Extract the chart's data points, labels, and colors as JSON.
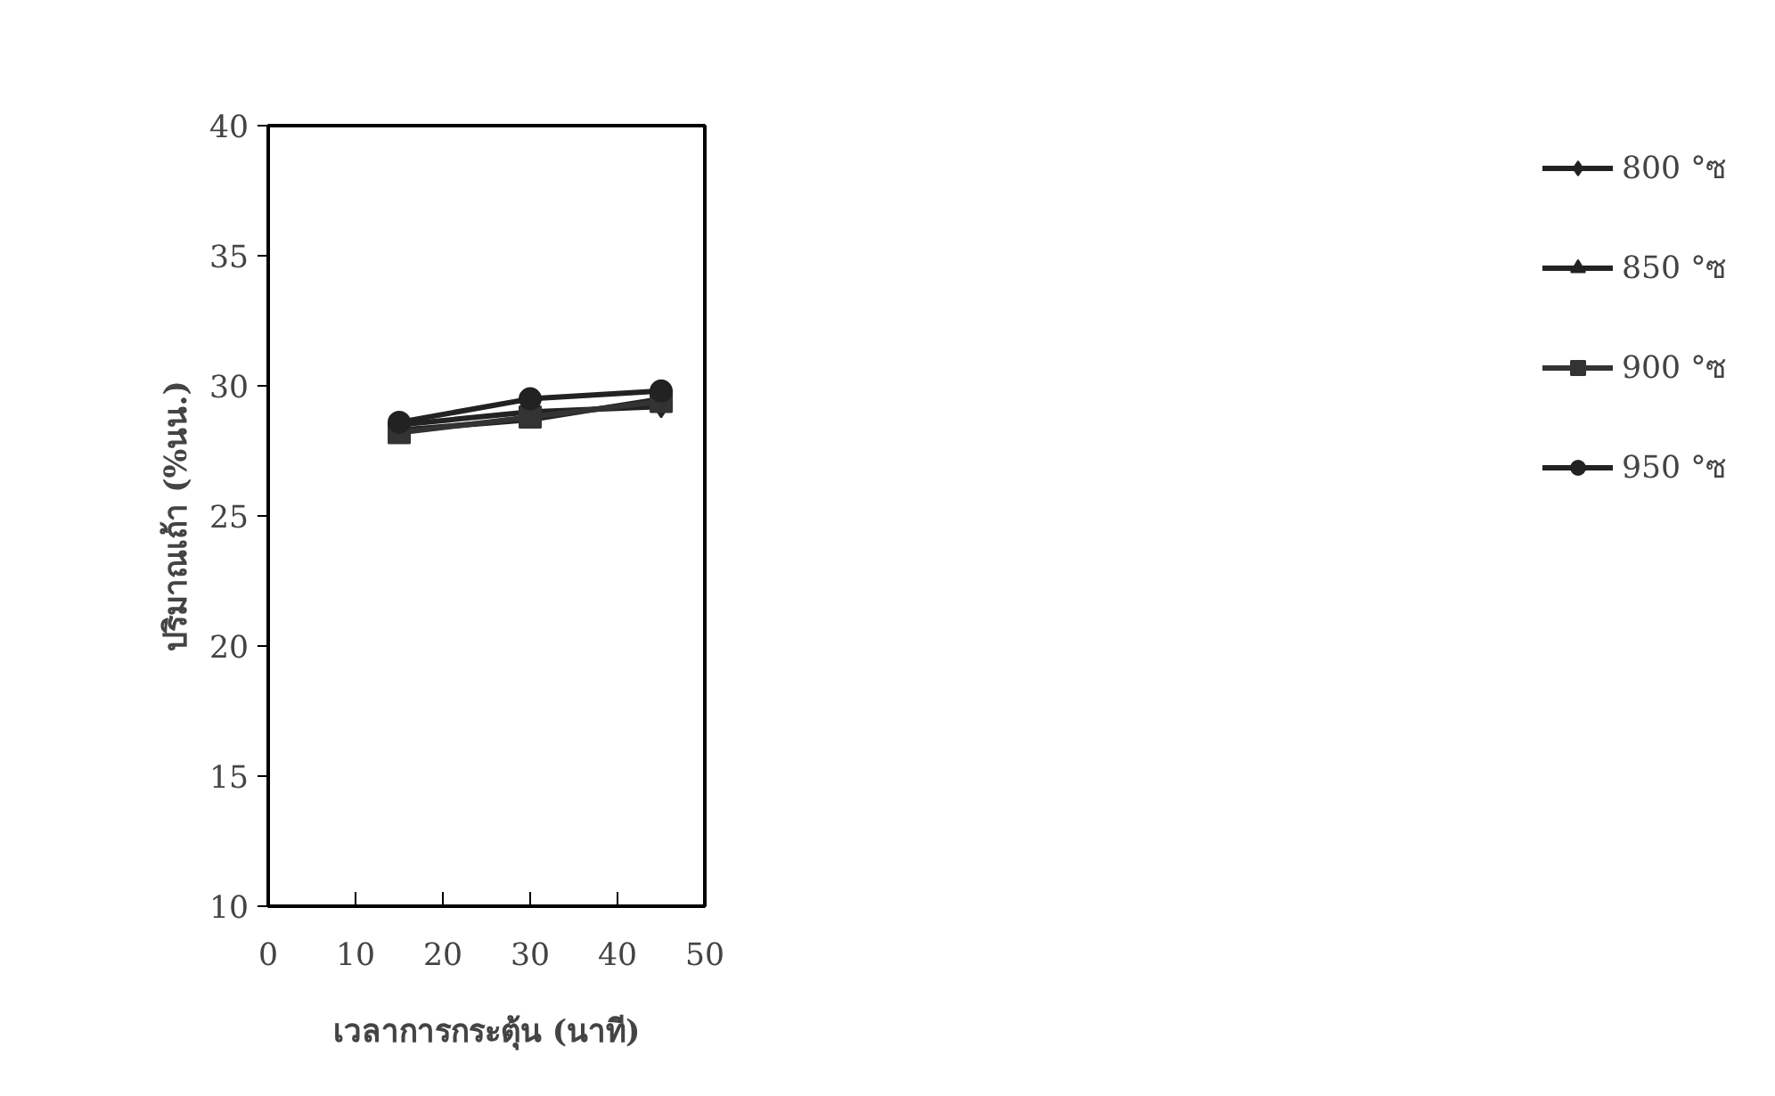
{
  "chart_data": {
    "type": "line",
    "xlabel": "เวลาการกระตุ้น (นาที)",
    "ylabel": "ปริมาณเถ้า (%นน.)",
    "x": [
      15,
      30,
      45
    ],
    "xlim": [
      0,
      50
    ],
    "xticks": [
      0,
      10,
      20,
      30,
      40,
      50
    ],
    "ylim": [
      10,
      40
    ],
    "yticks": [
      10,
      15,
      20,
      25,
      30,
      35,
      40
    ],
    "grid": false,
    "legend": "right",
    "series": [
      {
        "name": "800 °ซ",
        "color": "#222222",
        "marker": "diamond",
        "values": [
          28.5,
          29.0,
          29.2
        ]
      },
      {
        "name": "850 °ซ",
        "color": "#222222",
        "marker": "triangle",
        "values": [
          28.3,
          28.7,
          29.5
        ]
      },
      {
        "name": "900 °ซ",
        "color": "#333333",
        "marker": "square",
        "values": [
          28.2,
          28.8,
          29.4
        ]
      },
      {
        "name": "950 °ซ",
        "color": "#222222",
        "marker": "circle",
        "values": [
          28.6,
          29.5,
          29.8
        ]
      }
    ]
  }
}
